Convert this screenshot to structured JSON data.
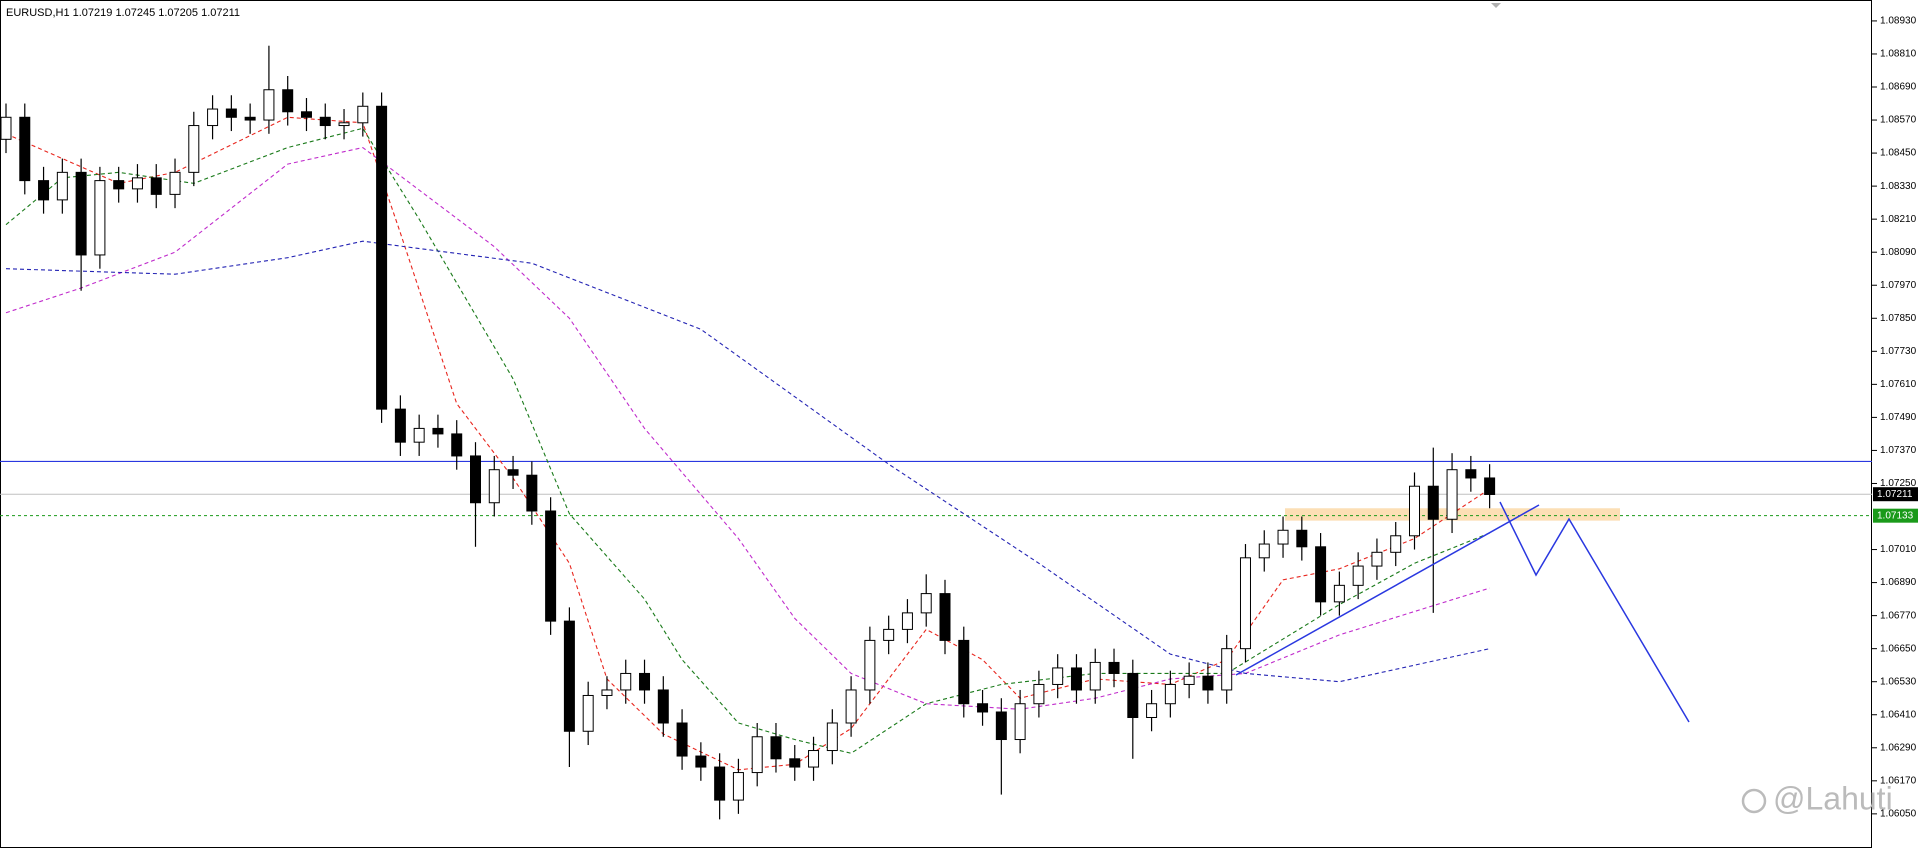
{
  "chart_data": {
    "type": "candlestick",
    "title": "EURUSD,H1  1.07219 1.07245 1.07205 1.07211",
    "watermark": "@Lahuti",
    "color": "#000000",
    "ylim": [
      1.05926,
      1.09006
    ],
    "yticks": [
      {
        "value": 1.0893,
        "label": "1.08930"
      },
      {
        "value": 1.0881,
        "label": "1.08810"
      },
      {
        "value": 1.0869,
        "label": "1.08690"
      },
      {
        "value": 1.0857,
        "label": "1.08570"
      },
      {
        "value": 1.0845,
        "label": "1.08450"
      },
      {
        "value": 1.0833,
        "label": "1.08330"
      },
      {
        "value": 1.0821,
        "label": "1.08210"
      },
      {
        "value": 1.0809,
        "label": "1.08090"
      },
      {
        "value": 1.0797,
        "label": "1.07970"
      },
      {
        "value": 1.0785,
        "label": "1.07850"
      },
      {
        "value": 1.0773,
        "label": "1.07730"
      },
      {
        "value": 1.0761,
        "label": "1.07610"
      },
      {
        "value": 1.0749,
        "label": "1.07490"
      },
      {
        "value": 1.0737,
        "label": "1.07370"
      },
      {
        "value": 1.0725,
        "label": "1.07250"
      },
      {
        "value": 1.0701,
        "label": "1.07010"
      },
      {
        "value": 1.0689,
        "label": "1.06890"
      },
      {
        "value": 1.0677,
        "label": "1.06770"
      },
      {
        "value": 1.0665,
        "label": "1.06650"
      },
      {
        "value": 1.0653,
        "label": "1.06530"
      },
      {
        "value": 1.0641,
        "label": "1.06410"
      },
      {
        "value": 1.0629,
        "label": "1.06290"
      },
      {
        "value": 1.0617,
        "label": "1.06170"
      },
      {
        "value": 1.0605,
        "label": "1.06050"
      }
    ],
    "open": [
      1.085,
      1.0858,
      1.0835,
      1.0828,
      1.0838,
      1.0808,
      1.0835,
      1.0832,
      1.0836,
      1.083,
      1.0838,
      1.0855,
      1.0861,
      1.0858,
      1.0857,
      1.0868,
      1.086,
      1.0858,
      1.0855,
      1.0856,
      1.0862,
      1.0752,
      1.074,
      1.0745,
      1.0743,
      1.0735,
      1.0718,
      1.073,
      1.0728,
      1.0715,
      1.0675,
      1.0635,
      1.0648,
      1.065,
      1.0656,
      1.065,
      1.0638,
      1.0626,
      1.0622,
      1.061,
      1.062,
      1.0633,
      1.0625,
      1.0622,
      1.0628,
      1.0638,
      1.065,
      1.0668,
      1.0672,
      1.0678,
      1.0685,
      1.0668,
      1.0645,
      1.0642,
      1.0632,
      1.0645,
      1.0652,
      1.0658,
      1.065,
      1.066,
      1.0656,
      1.064,
      1.0645,
      1.0652,
      1.0655,
      1.065,
      1.0665,
      1.0698,
      1.0703,
      1.0708,
      1.0702,
      1.0682,
      1.0688,
      1.0695,
      1.07,
      1.0706,
      1.0724,
      1.0712,
      1.073,
      1.0727
    ],
    "high": [
      1.0863,
      1.0863,
      1.084,
      1.0843,
      1.0843,
      1.084,
      1.084,
      1.0841,
      1.0841,
      1.0843,
      1.086,
      1.0866,
      1.0866,
      1.0863,
      1.0884,
      1.0873,
      1.0865,
      1.0863,
      1.0861,
      1.0867,
      1.0867,
      1.0757,
      1.075,
      1.075,
      1.0748,
      1.074,
      1.0735,
      1.0735,
      1.0733,
      1.072,
      1.068,
      1.0653,
      1.0655,
      1.0661,
      1.0661,
      1.0655,
      1.0643,
      1.0631,
      1.0627,
      1.0625,
      1.0638,
      1.0638,
      1.063,
      1.0633,
      1.0643,
      1.0655,
      1.0673,
      1.0677,
      1.0683,
      1.0692,
      1.069,
      1.0673,
      1.065,
      1.0647,
      1.065,
      1.0657,
      1.0663,
      1.0663,
      1.0665,
      1.0665,
      1.0661,
      1.065,
      1.0657,
      1.066,
      1.066,
      1.067,
      1.0703,
      1.0708,
      1.0713,
      1.0713,
      1.0707,
      1.0693,
      1.07,
      1.0705,
      1.0711,
      1.0729,
      1.0738,
      1.0736,
      1.0735,
      1.0732
    ],
    "low": [
      1.0845,
      1.083,
      1.0823,
      1.0823,
      1.0795,
      1.0803,
      1.0827,
      1.0827,
      1.0825,
      1.0825,
      1.0833,
      1.085,
      1.0853,
      1.0852,
      1.0852,
      1.0855,
      1.0853,
      1.085,
      1.085,
      1.0851,
      1.0747,
      1.0735,
      1.0735,
      1.0738,
      1.073,
      1.0702,
      1.0713,
      1.0723,
      1.071,
      1.067,
      1.0622,
      1.063,
      1.0643,
      1.0645,
      1.0645,
      1.0633,
      1.0621,
      1.0617,
      1.0603,
      1.0605,
      1.0615,
      1.062,
      1.0617,
      1.0617,
      1.0623,
      1.0633,
      1.0645,
      1.0663,
      1.0667,
      1.0673,
      1.0663,
      1.064,
      1.0637,
      1.0612,
      1.0627,
      1.064,
      1.0647,
      1.0645,
      1.0645,
      1.0651,
      1.0625,
      1.0635,
      1.064,
      1.0647,
      1.0645,
      1.0645,
      1.066,
      1.0693,
      1.0698,
      1.0697,
      1.0677,
      1.0677,
      1.0683,
      1.069,
      1.0695,
      1.0701,
      1.0678,
      1.0707,
      1.0722,
      1.0716
    ],
    "close": [
      1.0858,
      1.0835,
      1.0828,
      1.0838,
      1.0808,
      1.0835,
      1.0832,
      1.0836,
      1.083,
      1.0838,
      1.0855,
      1.0861,
      1.0858,
      1.0857,
      1.0868,
      1.086,
      1.0858,
      1.0855,
      1.0856,
      1.0862,
      1.0752,
      1.074,
      1.0745,
      1.0743,
      1.0735,
      1.0718,
      1.073,
      1.0728,
      1.0715,
      1.0675,
      1.0635,
      1.0648,
      1.065,
      1.0656,
      1.065,
      1.0638,
      1.0626,
      1.0622,
      1.061,
      1.062,
      1.0633,
      1.0625,
      1.0622,
      1.0628,
      1.0638,
      1.065,
      1.0668,
      1.0672,
      1.0678,
      1.0685,
      1.0668,
      1.0645,
      1.0642,
      1.0632,
      1.0645,
      1.0652,
      1.0658,
      1.065,
      1.066,
      1.0656,
      1.064,
      1.0645,
      1.0652,
      1.0655,
      1.065,
      1.0665,
      1.0698,
      1.0703,
      1.0708,
      1.0702,
      1.0682,
      1.0688,
      1.0695,
      1.07,
      1.0706,
      1.0724,
      1.0712,
      1.073,
      1.0727,
      1.0721
    ],
    "moving_averages": [
      {
        "color": "#e8261e",
        "x": [
          0,
          6,
          9,
          15,
          19,
          21,
          24,
          27,
          30,
          32,
          35,
          39,
          42,
          45,
          49,
          52,
          54,
          58,
          62,
          65,
          68,
          71,
          75,
          79
        ],
        "values": [
          1.0852,
          1.0834,
          1.0838,
          1.0858,
          1.0856,
          1.0816,
          1.0754,
          1.0727,
          1.0696,
          1.0654,
          1.0634,
          1.0621,
          1.0623,
          1.0636,
          1.0672,
          1.0661,
          1.0647,
          1.0654,
          1.0652,
          1.0661,
          1.069,
          1.0694,
          1.0705,
          1.0723
        ]
      },
      {
        "color": "#1a7a1a",
        "x": [
          0,
          3,
          6,
          10,
          15,
          19,
          22,
          27,
          30,
          34,
          36,
          39,
          42,
          45,
          49,
          53,
          58,
          65,
          71,
          75,
          79
        ],
        "values": [
          1.0819,
          1.0836,
          1.0838,
          1.0834,
          1.0847,
          1.0854,
          1.0821,
          1.0763,
          1.0714,
          1.0683,
          1.0661,
          1.0638,
          1.0632,
          1.0627,
          1.0645,
          1.0652,
          1.0656,
          1.0656,
          1.0681,
          1.0696,
          1.0707
        ]
      },
      {
        "color": "#c02ccc",
        "x": [
          0,
          4,
          9,
          15,
          19,
          26,
          30,
          34,
          39,
          42,
          45,
          49,
          54,
          58,
          62,
          66,
          71,
          79
        ],
        "values": [
          1.0787,
          1.0796,
          1.0809,
          1.0841,
          1.0847,
          1.0811,
          1.0785,
          1.0745,
          1.0705,
          1.0676,
          1.0656,
          1.0645,
          1.0643,
          1.0647,
          1.0654,
          1.0656,
          1.067,
          1.0687
        ]
      },
      {
        "color": "#2424b4",
        "x": [
          0,
          9,
          15,
          19,
          28,
          37,
          47,
          55,
          62,
          66,
          71,
          79
        ],
        "values": [
          1.0803,
          1.0801,
          1.0807,
          1.0813,
          1.0805,
          1.0781,
          1.0732,
          1.0696,
          1.0663,
          1.0656,
          1.0653,
          1.0665
        ]
      }
    ],
    "resistance_level": 1.0733,
    "current_price": 1.07211,
    "support_level": 1.07133,
    "zone": [
      1.07115,
      1.0716
    ]
  }
}
